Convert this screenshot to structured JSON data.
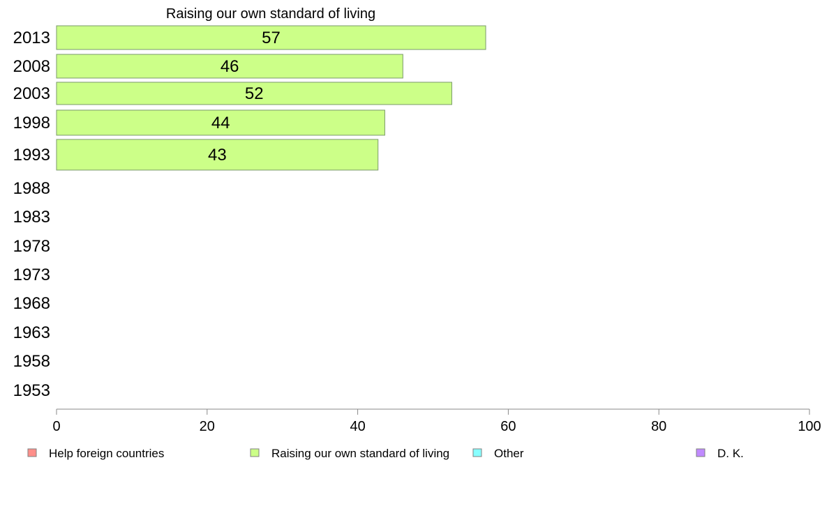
{
  "chart_data": {
    "type": "bar",
    "orientation": "horizontal",
    "title": "Raising our own standard of living",
    "categories": [
      "2013",
      "2008",
      "2003",
      "1998",
      "1993",
      "1988",
      "1983",
      "1978",
      "1973",
      "1968",
      "1963",
      "1958",
      "1953"
    ],
    "series": [
      {
        "name": "Raising our own standard of living",
        "color": "#ccff88",
        "values": [
          57,
          46,
          52.5,
          43.6,
          42.7,
          null,
          null,
          null,
          null,
          null,
          null,
          null,
          null
        ],
        "labels": [
          "57",
          "46",
          "52",
          "44",
          "43",
          "",
          "",
          "",
          "",
          "",
          "",
          "",
          ""
        ]
      }
    ],
    "xlim": [
      0,
      100
    ],
    "xticks": [
      "0",
      "20",
      "40",
      "60",
      "80",
      "100"
    ],
    "grid": false,
    "legend_position": "bottom",
    "legend": [
      {
        "label": "Help foreign countries",
        "color": "#ff8f8a"
      },
      {
        "label": "Raising our own standard of living",
        "color": "#ccff88"
      },
      {
        "label": "Other",
        "color": "#88ffff"
      },
      {
        "label": "D. K.",
        "color": "#c08aff"
      }
    ]
  }
}
